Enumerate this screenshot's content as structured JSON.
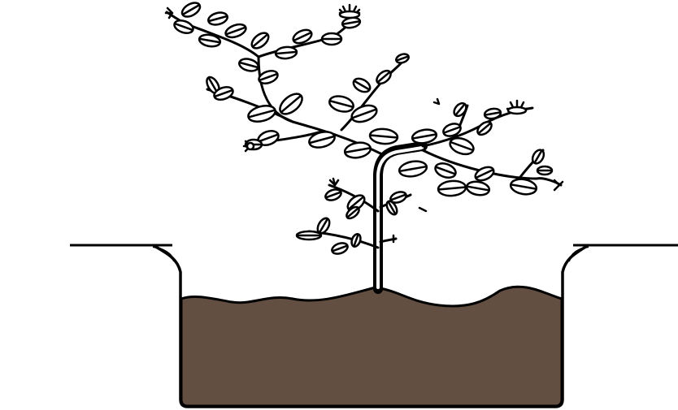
{
  "illustration": {
    "subject": "tree-planted-in-hole",
    "colors": {
      "background": "#ffffff",
      "outline": "#000000",
      "soil": "#634f41",
      "leaf_fill": "#ffffff"
    }
  }
}
